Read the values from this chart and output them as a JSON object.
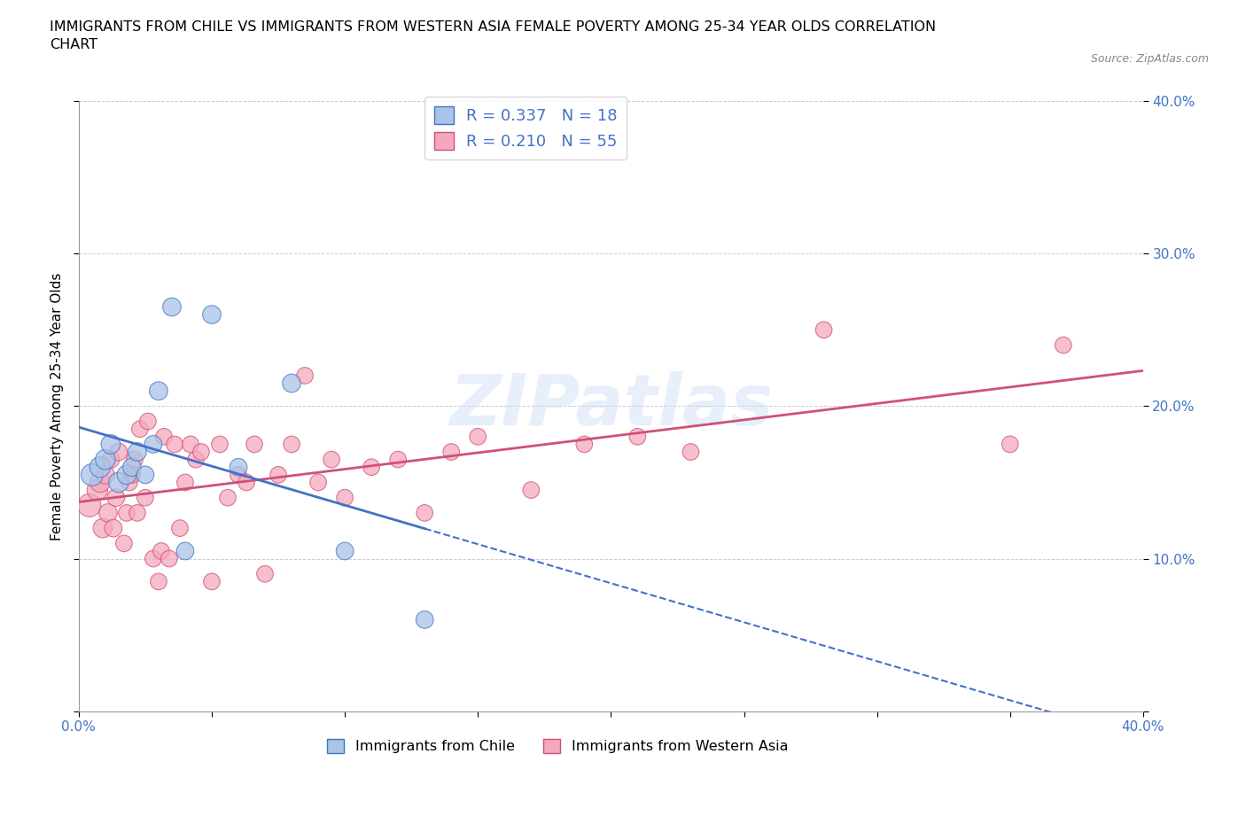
{
  "title": "IMMIGRANTS FROM CHILE VS IMMIGRANTS FROM WESTERN ASIA FEMALE POVERTY AMONG 25-34 YEAR OLDS CORRELATION\nCHART",
  "source": "Source: ZipAtlas.com",
  "ylabel": "Female Poverty Among 25-34 Year Olds",
  "xlim": [
    0.0,
    0.4
  ],
  "ylim": [
    0.0,
    0.4
  ],
  "x_ticks": [
    0.0,
    0.05,
    0.1,
    0.15,
    0.2,
    0.25,
    0.3,
    0.35,
    0.4
  ],
  "y_ticks": [
    0.0,
    0.1,
    0.2,
    0.3,
    0.4
  ],
  "chile_color": "#a8c4e8",
  "western_asia_color": "#f5a8bc",
  "chile_line_color": "#4472c4",
  "western_asia_line_color": "#d05078",
  "chile_r": 0.337,
  "chile_n": 18,
  "western_asia_r": 0.21,
  "western_asia_n": 55,
  "chile_x": [
    0.005,
    0.008,
    0.01,
    0.012,
    0.015,
    0.018,
    0.02,
    0.022,
    0.025,
    0.028,
    0.03,
    0.035,
    0.04,
    0.05,
    0.06,
    0.08,
    0.1,
    0.13
  ],
  "chile_y": [
    0.155,
    0.16,
    0.165,
    0.175,
    0.15,
    0.155,
    0.16,
    0.17,
    0.155,
    0.175,
    0.21,
    0.265,
    0.105,
    0.26,
    0.16,
    0.215,
    0.105,
    0.06
  ],
  "western_asia_x": [
    0.004,
    0.007,
    0.008,
    0.009,
    0.01,
    0.011,
    0.012,
    0.013,
    0.014,
    0.015,
    0.017,
    0.018,
    0.019,
    0.02,
    0.021,
    0.022,
    0.023,
    0.025,
    0.026,
    0.028,
    0.03,
    0.031,
    0.032,
    0.034,
    0.036,
    0.038,
    0.04,
    0.042,
    0.044,
    0.046,
    0.05,
    0.053,
    0.056,
    0.06,
    0.063,
    0.066,
    0.07,
    0.075,
    0.08,
    0.085,
    0.09,
    0.095,
    0.1,
    0.11,
    0.12,
    0.13,
    0.14,
    0.15,
    0.17,
    0.19,
    0.21,
    0.23,
    0.28,
    0.35,
    0.37
  ],
  "western_asia_y": [
    0.135,
    0.145,
    0.15,
    0.12,
    0.155,
    0.13,
    0.165,
    0.12,
    0.14,
    0.17,
    0.11,
    0.13,
    0.15,
    0.155,
    0.165,
    0.13,
    0.185,
    0.14,
    0.19,
    0.1,
    0.085,
    0.105,
    0.18,
    0.1,
    0.175,
    0.12,
    0.15,
    0.175,
    0.165,
    0.17,
    0.085,
    0.175,
    0.14,
    0.155,
    0.15,
    0.175,
    0.09,
    0.155,
    0.175,
    0.22,
    0.15,
    0.165,
    0.14,
    0.16,
    0.165,
    0.13,
    0.17,
    0.18,
    0.145,
    0.175,
    0.18,
    0.17,
    0.25,
    0.175,
    0.24
  ],
  "chile_marker_sizes": [
    320,
    280,
    260,
    240,
    260,
    240,
    220,
    220,
    200,
    200,
    220,
    220,
    200,
    220,
    200,
    220,
    200,
    200
  ],
  "wa_marker_sizes": [
    350,
    280,
    260,
    240,
    220,
    220,
    200,
    200,
    200,
    200,
    180,
    180,
    180,
    180,
    180,
    180,
    180,
    180,
    180,
    180,
    180,
    180,
    180,
    180,
    180,
    180,
    180,
    180,
    180,
    180,
    180,
    180,
    180,
    180,
    180,
    180,
    180,
    180,
    180,
    180,
    180,
    180,
    180,
    180,
    180,
    180,
    180,
    180,
    180,
    180,
    180,
    180,
    180,
    180,
    180
  ]
}
